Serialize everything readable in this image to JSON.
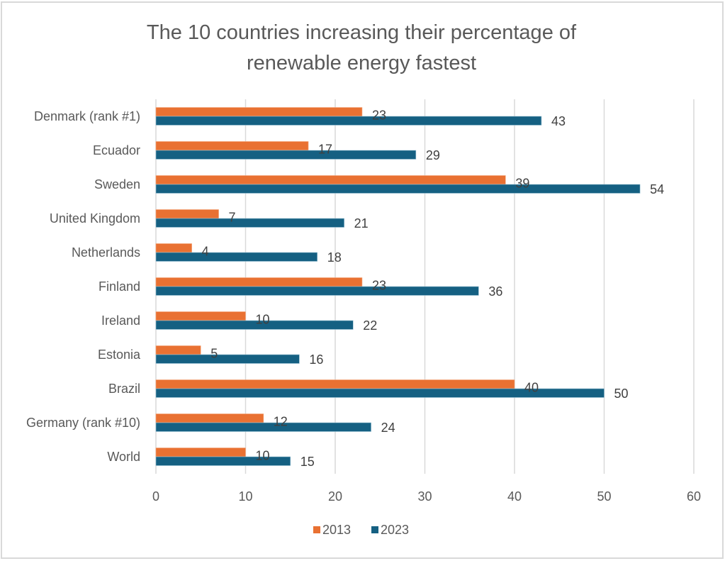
{
  "chart_data": {
    "type": "bar",
    "orientation": "horizontal",
    "title": "The 10 countries increasing their percentage of renewable energy fastest",
    "title_lines": [
      "The 10 countries increasing their percentage of",
      "renewable energy fastest"
    ],
    "categories": [
      "Denmark (rank #1)",
      "Ecuador",
      "Sweden",
      "United Kingdom",
      "Netherlands",
      "Finland",
      "Ireland",
      "Estonia",
      "Brazil",
      "Germany (rank #10)",
      "World"
    ],
    "series": [
      {
        "name": "2013",
        "color": "#e97132",
        "values": [
          23,
          17,
          39,
          7,
          4,
          23,
          10,
          5,
          40,
          12,
          10
        ]
      },
      {
        "name": "2023",
        "color": "#156082",
        "values": [
          43,
          29,
          54,
          21,
          18,
          36,
          22,
          16,
          50,
          24,
          15
        ]
      }
    ],
    "xlabel": "",
    "ylabel": "",
    "xlim": [
      0,
      60
    ],
    "x_ticks": [
      "0",
      "10",
      "20",
      "30",
      "40",
      "50",
      "60"
    ],
    "x_tick_values": [
      0,
      10,
      20,
      30,
      40,
      50,
      60
    ],
    "grid": true,
    "data_labels": true,
    "legend": {
      "position": "bottom",
      "entries": [
        "2013",
        "2023"
      ]
    }
  }
}
